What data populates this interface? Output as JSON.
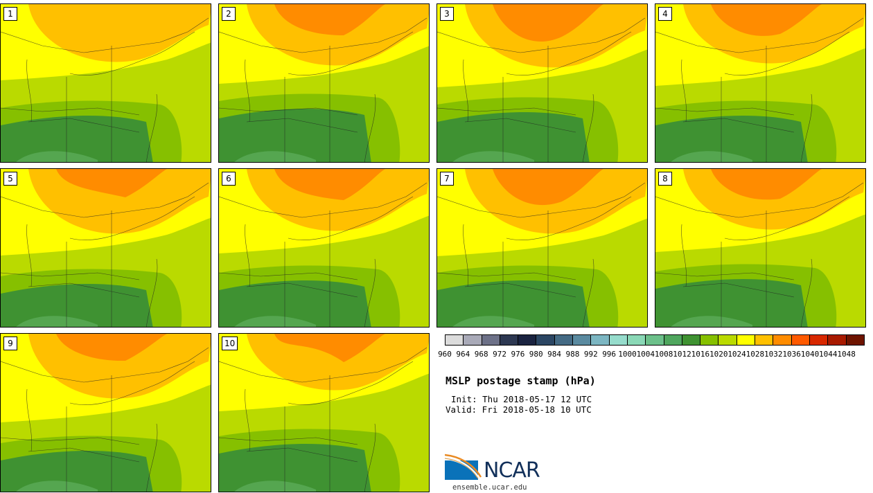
{
  "panels": [
    {
      "label": "1"
    },
    {
      "label": "2"
    },
    {
      "label": "3"
    },
    {
      "label": "4"
    },
    {
      "label": "5"
    },
    {
      "label": "6"
    },
    {
      "label": "7"
    },
    {
      "label": "8"
    },
    {
      "label": "9"
    },
    {
      "label": "10"
    }
  ],
  "colorbar": {
    "colors": [
      "#dcdcdc",
      "#a9aab8",
      "#6d7188",
      "#2d3852",
      "#1a2340",
      "#2b4663",
      "#446a84",
      "#5a8aa0",
      "#7cb6c2",
      "#96dccc",
      "#8ad8b6",
      "#6cc08a",
      "#4fa65e",
      "#3f9232",
      "#86c000",
      "#bada00",
      "#ffff00",
      "#ffc000",
      "#ff8c00",
      "#ff5a00",
      "#d82800",
      "#a81a00",
      "#6e1400"
    ],
    "tick_labels": [
      "960",
      "964",
      "968",
      "972",
      "976",
      "980",
      "984",
      "988",
      "992",
      "996",
      "1000",
      "1004",
      "1008",
      "1012",
      "1016",
      "1020",
      "1024",
      "1028",
      "1032",
      "1036",
      "1040",
      "1044",
      "1048"
    ]
  },
  "field_colors": {
    "low": "#55a650",
    "dark_green": "#3f9232",
    "mid_green": "#86c000",
    "light_green": "#bada00",
    "yellow": "#ffff00",
    "orange_light": "#ffc000",
    "orange": "#ff8c00"
  },
  "title": "MSLP postage stamp (hPa)",
  "init": "Init: Thu 2018-05-17 12 UTC",
  "valid": "Valid: Fri 2018-05-18 10 UTC",
  "logo": {
    "text": "NCAR",
    "url": "ensemble.ucar.edu"
  }
}
